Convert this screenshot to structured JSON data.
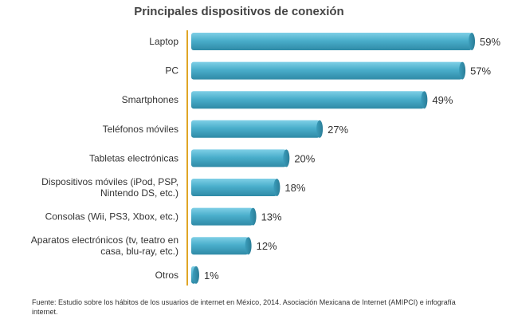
{
  "chart_data": {
    "type": "bar",
    "orientation": "horizontal",
    "title": "Principales dispositivos de conexión",
    "categories": [
      "Laptop",
      "PC",
      "Smartphones",
      "Teléfonos móviles",
      "Tabletas electrónicas",
      "Dispositivos móviles (iPod, PSP,\nNintendo DS, etc.)",
      "Consolas (Wii, PS3, Xbox, etc.)",
      "Aparatos electrónicos (tv, teatro en\ncasa, blu-ray, etc.)",
      "Otros"
    ],
    "values": [
      59,
      57,
      49,
      27,
      20,
      18,
      13,
      12,
      1
    ],
    "value_labels": [
      "59%",
      "57%",
      "49%",
      "27%",
      "20%",
      "18%",
      "13%",
      "12%",
      "1%"
    ],
    "xlim": [
      0,
      60
    ],
    "xlabel": "",
    "ylabel": "",
    "grid": false,
    "bar_color": "#4aaecb",
    "axis_color": "#e0a526"
  },
  "source_text": "Fuente: Estudio sobre los hábitos de los usuarios de internet en México, 2014. Asociación Mexicana de Internet (AMIPCI) e infografía internet."
}
